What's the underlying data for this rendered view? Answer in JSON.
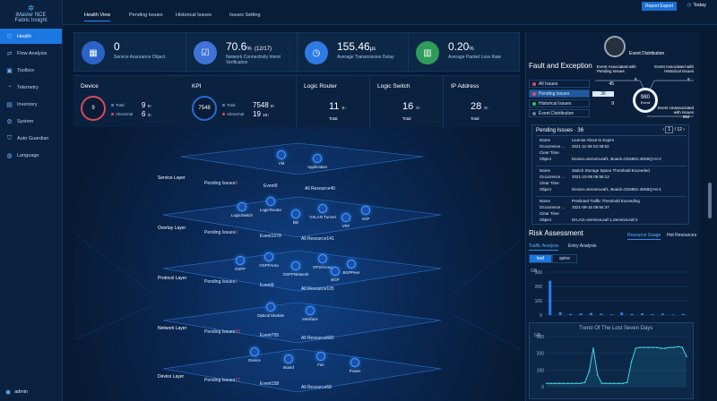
{
  "app": {
    "logo_line1": "iMaster NCE",
    "logo_line2": "Fabric Insight"
  },
  "sidebar": {
    "items": [
      {
        "label": "Health",
        "icon": "heart-icon",
        "active": true
      },
      {
        "label": "Flow Analysis",
        "icon": "flow-icon"
      },
      {
        "label": "Toolbox",
        "icon": "toolbox-icon"
      },
      {
        "label": "Telemetry",
        "icon": "telemetry-icon"
      },
      {
        "label": "Inventory",
        "icon": "inventory-icon"
      },
      {
        "label": "System",
        "icon": "gear-icon"
      },
      {
        "label": "Auto Guardian",
        "icon": "shield-icon"
      },
      {
        "label": "Language",
        "icon": "globe-icon"
      }
    ],
    "user": "admin"
  },
  "top": {
    "tabs": [
      "Health View",
      "Pending Issues",
      "Historical Issues",
      "Issues Setting"
    ],
    "report_btn": "Report Export",
    "today": "Today"
  },
  "kpis": [
    {
      "value": "0",
      "unit": "",
      "label": "Service Assurance Object",
      "color": "#2b63c9",
      "icon": "grid-icon"
    },
    {
      "value": "70.6",
      "unit": "%",
      "extra": "(12/17)",
      "label": "Network Connectivity Intent Verification",
      "color": "#3f73d8",
      "icon": "check-doc-icon"
    },
    {
      "value": "155.46",
      "unit": "μs",
      "label": "Average Transmission Delay",
      "color": "#2f7be6",
      "icon": "clock-icon"
    },
    {
      "value": "0.20",
      "unit": "%",
      "label": "Average Packet Loss Rate",
      "color": "#2e9b5a",
      "icon": "chart-icon"
    }
  ],
  "stats": {
    "device": {
      "title": "Device",
      "ring": "9",
      "total_label": "Total",
      "abnormal_label": "Abnormal",
      "total": "9",
      "total_up": "0",
      "abnormal": "6",
      "abnormal_up": "3"
    },
    "kpi": {
      "title": "KPI",
      "ring": "7548",
      "total_label": "Total",
      "abnormal_label": "Abnormal",
      "total": "7548",
      "total_up": "0",
      "abnormal": "19",
      "abnormal_up": "18"
    },
    "logic_router": {
      "title": "Logic Router",
      "value": "11",
      "up": "0",
      "label": "Total"
    },
    "logic_switch": {
      "title": "Logic Switch",
      "value": "16",
      "up": "0",
      "label": "Total"
    },
    "ip_address": {
      "title": "IP Address",
      "value": "28",
      "up": "0",
      "label": "Total"
    }
  },
  "layers": [
    {
      "name": "Service Layer",
      "pending": "Pending Issues",
      "pending_n": "0",
      "event": "Event9",
      "resource": "All Resource40",
      "nodes": [
        "VM",
        "Application"
      ]
    },
    {
      "name": "Overlay Layer",
      "pending": "Pending Issues",
      "pending_n": "0",
      "event": "Event1078",
      "resource": "All Resource141",
      "nodes": [
        "LogicSwitch",
        "LogicRouter",
        "BD",
        "VXLAN Tunnel",
        "VRF",
        "VAP"
      ]
    },
    {
      "name": "Protocol Layer",
      "pending": "Pending Issues",
      "pending_n": "1",
      "event": "Event9",
      "resource": "All Resource105",
      "nodes": [
        "OSPF",
        "OSPFArea",
        "DFSGroup",
        "OSPFNetwork",
        "BGPPeer",
        "BGP"
      ]
    },
    {
      "name": "Network Layer",
      "pending": "Pending Issues",
      "pending_n": "15",
      "event": "Event755",
      "resource": "All Resource682",
      "nodes": [
        "Optical Module",
        "Interface"
      ]
    },
    {
      "name": "Device Layer",
      "pending": "Pending Issues",
      "pending_n": "17",
      "event": "Event158",
      "resource": "All Resource58",
      "nodes": [
        "Device",
        "Board",
        "Fan",
        "Power"
      ]
    }
  ],
  "fault": {
    "title": "Fault and Exception",
    "event_distribution": "Event Distribution",
    "filters": [
      {
        "label": "All Issues",
        "count": "45",
        "color": "#e24c5c"
      },
      {
        "label": "Pending Issues",
        "count": "36",
        "color": "#e24c5c"
      },
      {
        "label": "Historical Issues",
        "count": "9",
        "color": "#2fbf6c"
      },
      {
        "label": "Event Distribution",
        "count": "",
        "color": "#6b7c93"
      }
    ],
    "donut_value": "980",
    "donut_label": "Event",
    "ev_pending": "Event Associated with Pending Issues",
    "ev_pending_n": "9",
    "ev_hist": "Event Associated with Historical Issues",
    "ev_hist_n": "9",
    "ev_unassoc": "Event Unassociated with Issues",
    "ev_unassoc_n": "962"
  },
  "pending": {
    "header": "Pending Issues · 36",
    "page": "1",
    "pages": "/ 12",
    "items": [
      {
        "name": "License About to Expire",
        "occurrence": "2021-11-08 02:38:52",
        "clear": "",
        "object": "Device=ServerLeaf1, Board=CE6851-48S6Q-HI-2"
      },
      {
        "name": "Switch Storage Space Threshold Exceeded",
        "occurrence": "2021-10-08 05:58:12",
        "clear": "",
        "object": "Device=ServerLeaf1, Board=CE6851-48S6Q-HI-1"
      },
      {
        "name": "Predicted Traffic Threshold Exceeding",
        "occurrence": "2021-09-15 06:54:37",
        "clear": "",
        "object": "M-LAG=ServiceLeaf-1,ServiceLeaf-2"
      }
    ],
    "labels": {
      "name": "Name",
      "occ": "Occurrence ...",
      "clear": "Clear Time",
      "obj": "Object"
    }
  },
  "risk": {
    "title": "Risk Assessment",
    "tabs": [
      "Traffic Analysis",
      "Entry Analysis"
    ],
    "tabs2": [
      "Resource Usage",
      "Hot Resources"
    ],
    "chips": [
      "leaf",
      "spine"
    ],
    "unit": "GB",
    "trend_title": "Trend Of The Lost Seven Days"
  },
  "chart_data": [
    {
      "type": "bar",
      "ylabel": "GB",
      "ylim": [
        0,
        300
      ],
      "yticks": [
        0,
        100,
        200,
        300
      ],
      "values": [
        240,
        20,
        8,
        12,
        15,
        10,
        5,
        18,
        8,
        12,
        6,
        10,
        4,
        8
      ]
    },
    {
      "type": "line",
      "title": "Trend Of The Lost Seven Days",
      "ylabel": "GB",
      "ylim": [
        0,
        300
      ],
      "yticks": [
        0,
        100,
        200,
        300
      ],
      "values": [
        20,
        20,
        20,
        20,
        20,
        20,
        20,
        20,
        20,
        25,
        90,
        230,
        70,
        20,
        20,
        20,
        20,
        20,
        20,
        25,
        150,
        230,
        235,
        235,
        235,
        235,
        235,
        230,
        230,
        235,
        235,
        240,
        235,
        180
      ]
    }
  ]
}
